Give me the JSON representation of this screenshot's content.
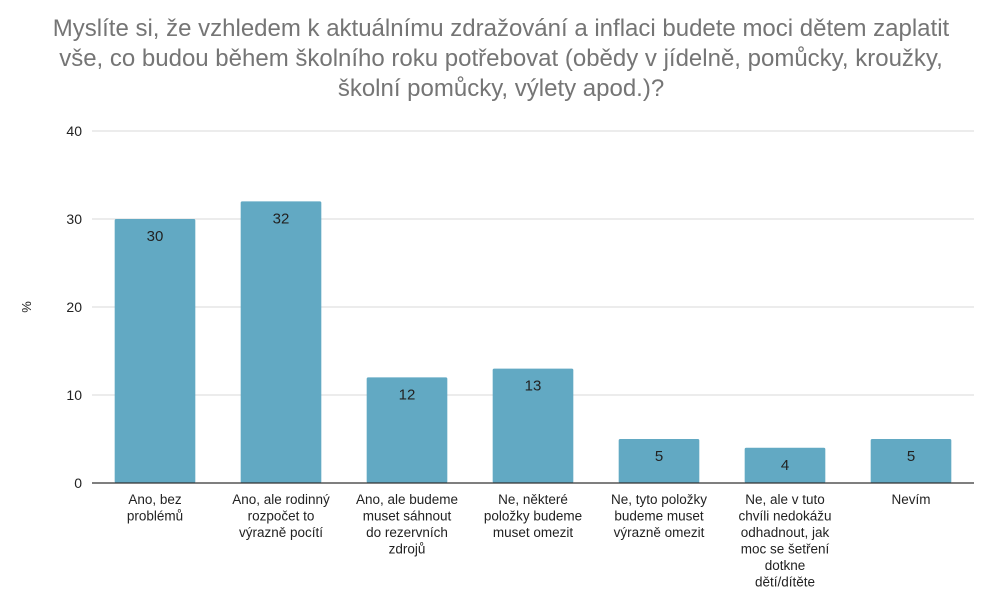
{
  "chart_data": {
    "type": "bar",
    "title_lines": [
      "Myslíte si, že vzhledem k aktuálnímu zdražování a inflaci budete moci dětem zaplatit",
      "vše, co budou během školního roku potřebovat (obědy v jídelně, pomůcky, kroužky,",
      "školní pomůcky, výlety apod.)?"
    ],
    "ylabel": "%",
    "xlabel": "",
    "ylim": [
      0,
      40
    ],
    "yticks": [
      0,
      10,
      20,
      30,
      40
    ],
    "grid": true,
    "legend": "none",
    "bar_color": "#62a9c3",
    "categories": [
      [
        "Ano, bez",
        "problémů"
      ],
      [
        "Ano, ale rodinný",
        "rozpočet to",
        "výrazně pocítí"
      ],
      [
        "Ano, ale budeme",
        "muset sáhnout",
        "do rezervních",
        "zdrojů"
      ],
      [
        "Ne, některé",
        "položky budeme",
        "muset omezit"
      ],
      [
        "Ne, tyto položky",
        "budeme muset",
        "výrazně omezit"
      ],
      [
        "Ne, ale v tuto",
        "chvíli nedokážu",
        "odhadnout, jak",
        "moc se šetření",
        "dotkne",
        "dětí/dítěte"
      ],
      [
        "Nevím"
      ]
    ],
    "values": [
      30,
      32,
      12,
      13,
      5,
      4,
      5
    ],
    "data_labels": [
      "30",
      "32",
      "12",
      "13",
      "5",
      "4",
      "5"
    ]
  }
}
